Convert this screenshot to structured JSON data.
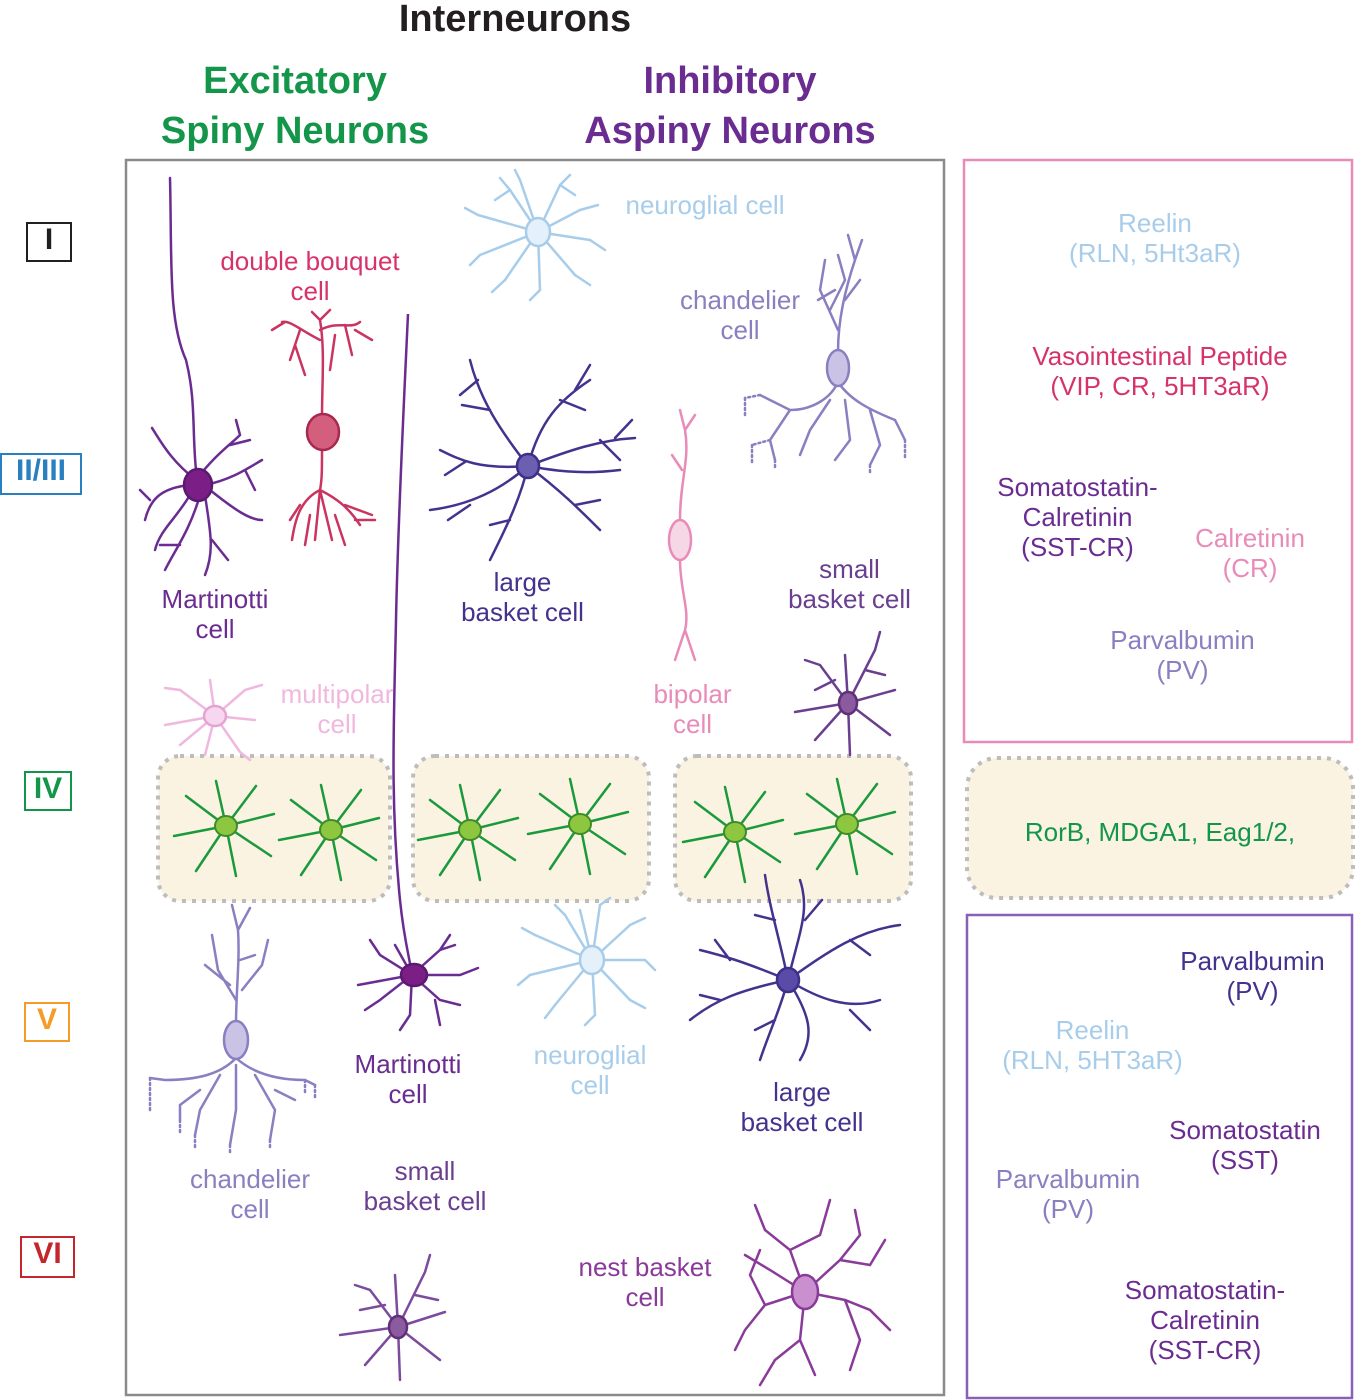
{
  "title": "Interneurons",
  "headers": {
    "excitatory": "Excitatory\nSpiny Neurons",
    "inhibitory": "Inhibitory\nAspiny Neurons"
  },
  "colors": {
    "excitatory": "#14964a",
    "inhibitory": "#6a2c91",
    "layer_I": "#231f20",
    "layer_II_III": "#2a7fc1",
    "layer_IV": "#14964a",
    "layer_V": "#f29d27",
    "layer_VI": "#c4262e",
    "reelin": "#a8cdea",
    "vip": "#d6336c",
    "sst": "#6a2c91",
    "calretinin": "#e98bb9",
    "pv": "#8a7fc0",
    "pv_dark": "#45328e",
    "marker_box_upper": "#e88bb8",
    "marker_box_lower": "#8a5fb6",
    "layer_iv_fill": "#fbf3e1"
  },
  "layers": [
    "I",
    "II/III",
    "IV",
    "V",
    "VI"
  ],
  "cells": {
    "martinotti_upper": "Martinotti\ncell",
    "double_bouquet": "double bouquet\ncell",
    "large_basket_upper": "large\nbasket cell",
    "neuroglial_upper": "neuroglial cell",
    "chandelier_upper": "chandelier\ncell",
    "bipolar": "bipolar\ncell",
    "small_basket_upper": "small\nbasket cell",
    "multipolar": "multipolar\ncell",
    "chandelier_lower": "chandelier\ncell",
    "martinotti_lower": "Martinotti\ncell",
    "neuroglial_lower": "neuroglial\ncell",
    "large_basket_lower": "large\nbasket cell",
    "small_basket_lower": "small\nbasket cell",
    "nest_basket": "nest basket\ncell"
  },
  "markers_upper": {
    "reelin": "Reelin\n(RLN, 5Ht3aR)",
    "vip": "Vasointestinal Peptide\n(VIP, CR, 5HT3aR)",
    "sst_cr": "Somatostatin-\nCalretinin\n(SST-CR)",
    "calretinin": "Calretinin\n(CR)",
    "pv": "Parvalbumin\n(PV)"
  },
  "markers_iv": "RorB, MDGA1, Eag1/2,",
  "markers_lower": {
    "pv_top": "Parvalbumin\n(PV)",
    "reelin": "Reelin\n(RLN, 5HT3aR)",
    "sst": "Somatostatin\n(SST)",
    "pv_bottom": "Parvalbumin\n(PV)",
    "sst_cr": "Somatostatin-\nCalretinin\n(SST-CR)"
  }
}
